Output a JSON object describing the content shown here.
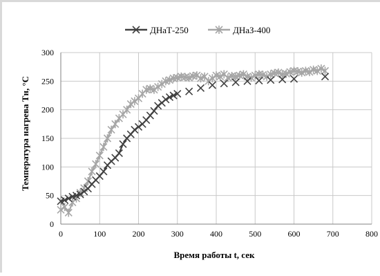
{
  "chart_data": {
    "type": "line",
    "title": "",
    "xlabel": "Время работы t, сек",
    "ylabel": "Температура нагрева Tн, °C",
    "xlim": [
      0,
      800
    ],
    "ylim": [
      0,
      300
    ],
    "x_ticks": [
      0,
      100,
      200,
      300,
      400,
      500,
      600,
      700,
      800
    ],
    "y_ticks": [
      0,
      50,
      100,
      150,
      200,
      250,
      300
    ],
    "grid": "horizontal",
    "legend_position": "top",
    "series": [
      {
        "name": "ДНаТ-250",
        "color": "#404040",
        "marker": "x",
        "x": [
          0,
          10,
          20,
          30,
          40,
          50,
          60,
          70,
          80,
          90,
          100,
          110,
          120,
          130,
          140,
          150,
          160,
          170,
          180,
          190,
          200,
          210,
          220,
          230,
          240,
          250,
          260,
          270,
          280,
          290,
          300,
          330,
          360,
          390,
          420,
          450,
          480,
          510,
          540,
          570,
          600,
          680
        ],
        "y": [
          40,
          42,
          45,
          48,
          50,
          52,
          57,
          62,
          70,
          77,
          84,
          92,
          103,
          110,
          116,
          124,
          140,
          150,
          157,
          165,
          170,
          175,
          182,
          190,
          198,
          207,
          212,
          218,
          222,
          225,
          228,
          232,
          238,
          243,
          246,
          248,
          250,
          251,
          252,
          253,
          254,
          258
        ]
      },
      {
        "name": "ДНаЗ-400",
        "color": "#a6a6a6",
        "marker": "asterisk",
        "x": [
          0,
          10,
          20,
          30,
          40,
          50,
          60,
          70,
          80,
          90,
          100,
          110,
          120,
          130,
          140,
          150,
          160,
          170,
          180,
          190,
          200,
          210,
          220,
          230,
          240,
          250,
          260,
          270,
          280,
          290,
          300,
          310,
          320,
          330,
          340,
          350,
          360,
          370,
          380,
          390,
          400,
          410,
          420,
          430,
          440,
          450,
          460,
          470,
          480,
          490,
          500,
          510,
          520,
          530,
          540,
          550,
          560,
          570,
          580,
          590,
          600,
          610,
          620,
          630,
          640,
          650,
          660,
          670,
          680
        ],
        "y": [
          25,
          30,
          20,
          38,
          45,
          55,
          63,
          75,
          92,
          105,
          120,
          135,
          150,
          165,
          175,
          185,
          192,
          200,
          210,
          215,
          220,
          228,
          235,
          237,
          235,
          240,
          245,
          250,
          252,
          255,
          256,
          258,
          257,
          256,
          259,
          260,
          255,
          258,
          250,
          255,
          260,
          258,
          262,
          256,
          259,
          258,
          260,
          262,
          258,
          256,
          260,
          262,
          261,
          258,
          262,
          264,
          265,
          262,
          263,
          266,
          268,
          267,
          265,
          268,
          266,
          270,
          268,
          272,
          268
        ]
      }
    ]
  }
}
